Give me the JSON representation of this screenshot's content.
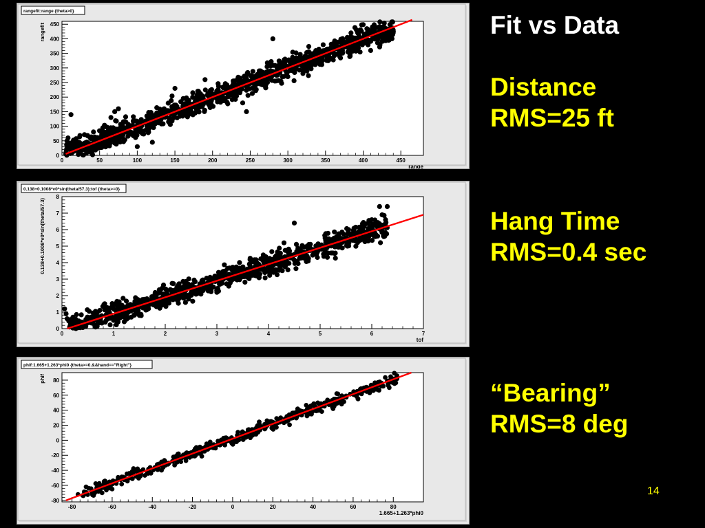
{
  "slide": {
    "title": "Fit vs Data",
    "blocks": [
      {
        "heading": "Distance",
        "value": "RMS=25 ft"
      },
      {
        "heading": "Hang Time",
        "value": "RMS=0.4 sec"
      },
      {
        "heading": "“Bearing”",
        "value": "RMS=8 deg"
      }
    ],
    "page_number": "14"
  },
  "colors": {
    "background": "#000000",
    "title_text": "#ffffff",
    "highlight_text": "#ffff00",
    "plot_frame": "#e8e8e8",
    "plot_area": "#ffffff",
    "points": "#000000",
    "fit_line": "#ff0000"
  },
  "chart_data": [
    {
      "type": "scatter",
      "title": "rangefit:range {theta>0}",
      "xlabel": "range",
      "ylabel": "rangefit",
      "xlim": [
        0,
        480
      ],
      "ylim": [
        0,
        460
      ],
      "xticks": [
        0,
        50,
        100,
        150,
        200,
        250,
        300,
        350,
        400,
        450
      ],
      "yticks": [
        0,
        50,
        100,
        150,
        200,
        250,
        300,
        350,
        400,
        450
      ],
      "fit_line": {
        "x": [
          5,
          465
        ],
        "y": [
          5,
          465
        ]
      },
      "band": {
        "x_start": 5,
        "x_end": 440,
        "spread": 28
      },
      "points": [
        [
          12,
          140
        ],
        [
          8,
          60
        ],
        [
          15,
          48
        ],
        [
          22,
          30
        ],
        [
          45,
          30
        ],
        [
          65,
          130
        ],
        [
          70,
          150
        ],
        [
          75,
          160
        ],
        [
          150,
          230
        ],
        [
          190,
          260
        ],
        [
          280,
          400
        ],
        [
          300,
          270
        ],
        [
          320,
          290
        ],
        [
          420,
          400
        ],
        [
          430,
          410
        ],
        [
          440,
          425
        ],
        [
          100,
          30
        ],
        [
          120,
          45
        ],
        [
          245,
          150
        ],
        [
          240,
          180
        ],
        [
          425,
          440
        ],
        [
          410,
          360
        ]
      ]
    },
    {
      "type": "scatter",
      "title": "0.138+0.1008*v0*sin(theta/57.3):tof {theta>=0}",
      "xlabel": "tof",
      "ylabel": "0.138+0.1008*v0*sin(theta/57.3)",
      "xlim": [
        0,
        7
      ],
      "ylim": [
        0,
        8
      ],
      "xticks": [
        0,
        1,
        2,
        3,
        4,
        5,
        6,
        7
      ],
      "yticks": [
        0,
        1,
        2,
        3,
        4,
        5,
        6,
        7,
        8
      ],
      "fit_line": {
        "x": [
          0.1,
          7.0
        ],
        "y": [
          0.0,
          6.9
        ]
      },
      "band": {
        "x_start": 0.1,
        "x_end": 6.3,
        "spread": 0.45
      },
      "points": [
        [
          0.05,
          1.2
        ],
        [
          0.08,
          0.9
        ],
        [
          0.1,
          0.6
        ],
        [
          4.5,
          6.4
        ],
        [
          6.15,
          7.4
        ],
        [
          6.3,
          7.4
        ],
        [
          6.2,
          6.9
        ],
        [
          6.0,
          6.6
        ],
        [
          5.5,
          5.4
        ],
        [
          1.0,
          0.5
        ],
        [
          1.5,
          0.8
        ],
        [
          3.0,
          2.2
        ],
        [
          4.3,
          5.2
        ],
        [
          6.25,
          5.6
        ]
      ]
    },
    {
      "type": "scatter",
      "title": "phif:1.665+1.263*phi0 {theta>=0.&&hand==\"Right\"}",
      "xlabel": "1.665+1.263*phi0",
      "ylabel": "phif",
      "xlim": [
        -85,
        95
      ],
      "ylim": [
        -82,
        90
      ],
      "xticks": [
        -80,
        -60,
        -40,
        -20,
        0,
        20,
        40,
        60,
        80
      ],
      "yticks": [
        -80,
        -60,
        -40,
        -20,
        0,
        20,
        40,
        60,
        80
      ],
      "fit_line": {
        "x": [
          -83,
          89
        ],
        "y": [
          -80,
          90
        ]
      },
      "band": {
        "x_start": -75,
        "x_end": 82,
        "spread": 5
      },
      "points": [
        [
          -73,
          -62
        ],
        [
          -77,
          -72
        ],
        [
          -70,
          -68
        ],
        [
          -65,
          -70
        ],
        [
          -60,
          -65
        ],
        [
          80,
          78
        ],
        [
          78,
          70
        ],
        [
          75,
          72
        ],
        [
          70,
          66
        ],
        [
          50,
          42
        ],
        [
          -30,
          -28
        ]
      ]
    }
  ]
}
